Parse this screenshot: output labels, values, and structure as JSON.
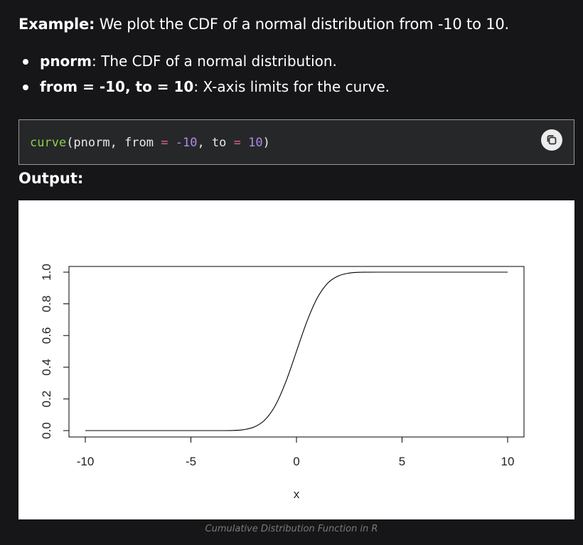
{
  "intro": {
    "label": "Example:",
    "text": " We plot the CDF of a normal distribution from -10 to 10."
  },
  "bullets": [
    {
      "term": "pnorm",
      "desc": ": The CDF of a normal distribution."
    },
    {
      "term": "from = -10, to = 10",
      "desc": ": X-axis limits for the curve."
    }
  ],
  "code": {
    "fn": "curve",
    "open": "(pnorm, from ",
    "eq1": "=",
    "val1": " -10",
    "mid": ", to ",
    "eq2": "=",
    "val2": " 10",
    "close": ")",
    "copy_icon": "copy-icon"
  },
  "output_label": "Output:",
  "chart_data": {
    "type": "line",
    "function": "pnorm",
    "xlabel": "x",
    "ylabel": "",
    "xlim": [
      -10,
      10
    ],
    "ylim": [
      0,
      1
    ],
    "x_ticks": [
      -10,
      -5,
      0,
      5,
      10
    ],
    "y_ticks": [
      0.0,
      0.2,
      0.4,
      0.6,
      0.8,
      1.0
    ],
    "x_tick_labels": [
      "-10",
      "-5",
      "0",
      "5",
      "10"
    ],
    "y_tick_labels": [
      "0.0",
      "0.2",
      "0.4",
      "0.6",
      "0.8",
      "1.0"
    ],
    "series": [
      {
        "x": [
          -10,
          -4,
          -3,
          -2.5,
          -2,
          -1.5,
          -1,
          -0.5,
          0,
          0.5,
          1,
          1.5,
          2,
          2.5,
          3,
          4,
          10
        ],
        "y": [
          0,
          0,
          0.001,
          0.006,
          0.023,
          0.067,
          0.159,
          0.309,
          0.5,
          0.691,
          0.841,
          0.933,
          0.977,
          0.994,
          0.999,
          1,
          1
        ]
      }
    ]
  },
  "caption": "Cumulative Distribution Function in R"
}
